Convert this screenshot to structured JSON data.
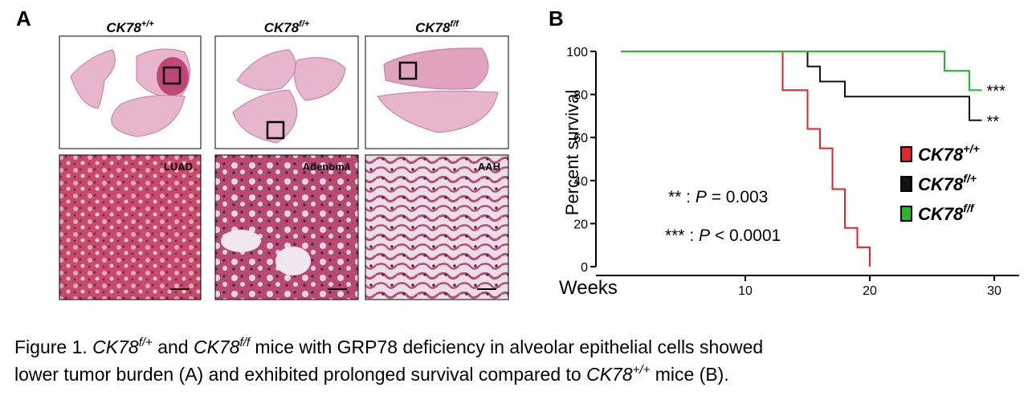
{
  "panel_a": {
    "label": "A",
    "columns": [
      {
        "genotype": "CK78",
        "superscript": "+/+",
        "inset_label": "LUAD"
      },
      {
        "genotype": "CK78",
        "superscript": "f/+",
        "inset_label": "Adenoma"
      },
      {
        "genotype": "CK78",
        "superscript": "f/f",
        "inset_label": "AAH"
      }
    ]
  },
  "chart_data": {
    "type": "step",
    "label": "B",
    "y_label": "Percent survival",
    "x_label": "Weeks",
    "xlim": [
      -2,
      32
    ],
    "ylim": [
      0,
      100
    ],
    "xticks": [
      10,
      20,
      30
    ],
    "yticks": [
      0,
      20,
      40,
      60,
      80,
      100
    ],
    "series": [
      {
        "name": "CK78",
        "superscript": "+/+",
        "color": "#ee2222",
        "x": [
          0,
          13,
          15,
          16,
          17,
          18,
          19,
          20
        ],
        "values": [
          100,
          82,
          64,
          55,
          36,
          18,
          9,
          0
        ]
      },
      {
        "name": "CK78",
        "superscript": "f/+",
        "color": "#111111",
        "x": [
          0,
          15,
          16,
          18,
          28,
          29
        ],
        "values": [
          100,
          93,
          86,
          79,
          68,
          68
        ]
      },
      {
        "name": "CK78",
        "superscript": "f/f",
        "color": "#22bb22",
        "x": [
          0,
          26,
          28,
          29
        ],
        "values": [
          100,
          91,
          82,
          82
        ]
      }
    ],
    "annotations": [
      {
        "text": "***",
        "x": 29,
        "y": 82
      },
      {
        "text": "**",
        "x": 29,
        "y": 68
      }
    ],
    "stats": [
      {
        "prefix": "** : ",
        "variable": "P",
        "rest": " = 0.003"
      },
      {
        "prefix": "*** : ",
        "variable": "P",
        "rest": " < 0.0001"
      }
    ]
  },
  "caption": {
    "lines": [
      [
        {
          "text": "Figure 1. "
        },
        {
          "text": "CK78",
          "italic": true
        },
        {
          "text": "f/+",
          "italic": true,
          "sup": true
        },
        {
          "text": " and "
        },
        {
          "text": "CK78",
          "italic": true
        },
        {
          "text": "f/f",
          "italic": true,
          "sup": true
        },
        {
          "text": " mice with GRP78 deficiency in alveolar epithelial cells showed"
        }
      ],
      [
        {
          "text": "lower tumor burden (A) and exhibited prolonged survival compared to "
        },
        {
          "text": "CK78",
          "italic": true
        },
        {
          "text": "+/+",
          "italic": true,
          "sup": true
        },
        {
          "text": " mice (B)."
        }
      ]
    ]
  }
}
